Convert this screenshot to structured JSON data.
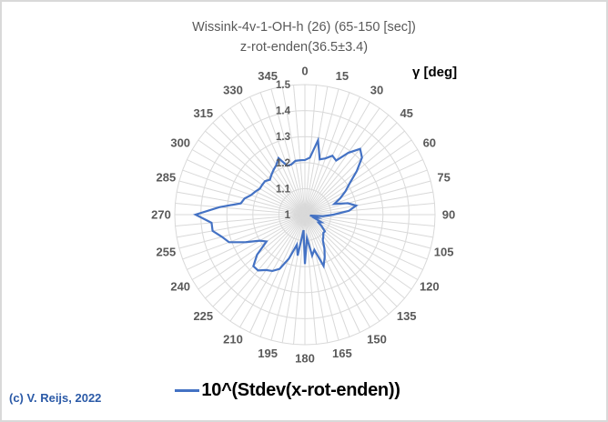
{
  "title": {
    "line1": "Wissink-4v-1-OH-h (26) (65-150 [sec])",
    "line2": "z-rot-enden(36.5±3.4)"
  },
  "gamma_axis_note": "γ [deg]",
  "copyright": "(c) V. Reijs, 2022",
  "legend": {
    "label": "10^(Stdev(x-rot-enden))",
    "line_color": "#4472C4"
  },
  "colors": {
    "series_line": "#4472C4",
    "grid": "#d9d9d9",
    "axis_labels": "#595959",
    "copyright_text": "#2b5aa7",
    "window_border": "#d9d9d9",
    "background": "#ffffff"
  },
  "chart_data": {
    "type": "line",
    "subtype": "radar-polar",
    "title": "Wissink-4v-1-OH-h (26) (65-150 [sec]) z-rot-enden(36.5±3.4)",
    "angular_unit": "deg",
    "direction": "clockwise",
    "start_angle": "top",
    "angle_step_deg": 5,
    "angle_start_deg": 0,
    "angular_tick_labels": [
      "0",
      "15",
      "30",
      "45",
      "60",
      "75",
      "90",
      "105",
      "120",
      "135",
      "150",
      "165",
      "180",
      "195",
      "210",
      "225",
      "240",
      "255",
      "270",
      "285",
      "300",
      "315",
      "330",
      "345"
    ],
    "radial_axis": {
      "min": 1.0,
      "max": 1.5,
      "tick_interval": 0.1,
      "tick_labels": [
        "1",
        "1.1",
        "1.2",
        "1.3",
        "1.4",
        "1.5"
      ]
    },
    "grid": {
      "spoke_step_deg": 5,
      "rings": [
        1.1,
        1.2,
        1.3,
        1.4,
        1.5
      ],
      "show": true
    },
    "legend_position": "bottom",
    "series": [
      {
        "name": "10^(Stdev(x-rot-enden))",
        "color": "#4472C4",
        "values": [
          1.21,
          1.22,
          1.29,
          1.22,
          1.23,
          1.25,
          1.24,
          1.29,
          1.33,
          1.31,
          1.26,
          1.21,
          1.18,
          1.15,
          1.12,
          1.17,
          1.2,
          1.17,
          1.11,
          1.07,
          1.02,
          1.05,
          1.04,
          1.07,
          1.06,
          1.08,
          1.1,
          1.1,
          1.11,
          1.12,
          1.15,
          1.18,
          1.21,
          1.14,
          1.16,
          1.09,
          1.19,
          1.06,
          1.16,
          1.12,
          1.18,
          1.23,
          1.25,
          1.26,
          1.28,
          1.28,
          1.24,
          1.18,
          1.2,
          1.25,
          1.31,
          1.33,
          1.36,
          1.36,
          1.42,
          1.33,
          1.25,
          1.24,
          1.22,
          1.21,
          1.2,
          1.2,
          1.2,
          1.19,
          1.2,
          1.21,
          1.22,
          1.24,
          1.2,
          1.2,
          1.21,
          1.21
        ]
      }
    ]
  }
}
